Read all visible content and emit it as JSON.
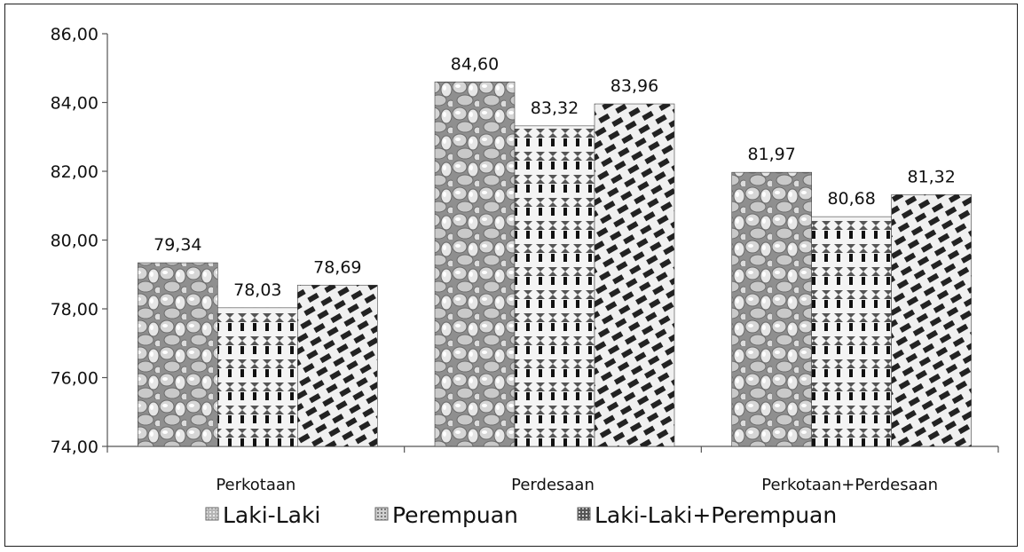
{
  "chart_data": {
    "type": "bar",
    "categories": [
      "Perkotaan",
      "Perdesaan",
      "Perkotaan+Perdesaan"
    ],
    "series": [
      {
        "name": "Laki-Laki",
        "values": [
          79.34,
          84.6,
          81.97
        ],
        "labels": [
          "79,34",
          "84,60",
          "81,97"
        ],
        "pattern": "bubbles"
      },
      {
        "name": "Perempuan",
        "values": [
          78.03,
          83.32,
          80.68
        ],
        "labels": [
          "78,03",
          "83,32",
          "80,68"
        ],
        "pattern": "dots"
      },
      {
        "name": "Laki-Laki+Perempuan",
        "values": [
          78.69,
          83.96,
          81.32
        ],
        "labels": [
          "78,69",
          "83,96",
          "81,32"
        ],
        "pattern": "weave"
      }
    ],
    "ylim": [
      74,
      86
    ],
    "yticks": [
      74,
      76,
      78,
      80,
      82,
      84,
      86
    ],
    "ytick_labels": [
      "74,00",
      "76,00",
      "78,00",
      "80,00",
      "82,00",
      "84,00",
      "86,00"
    ],
    "legend_position": "bottom",
    "grid": false,
    "colors": {
      "bar_base": "#9a9a9a",
      "bar_dark": "#1a1a1a",
      "bar_light": "#f2f2f2",
      "axis": "#555555"
    }
  }
}
